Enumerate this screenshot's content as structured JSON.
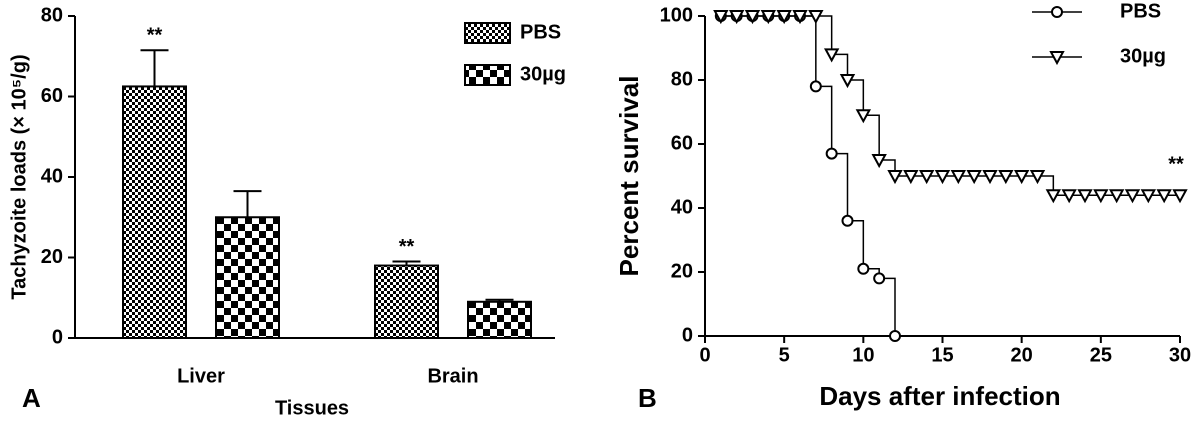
{
  "chart_data": [
    {
      "type": "bar",
      "panel_label": "A",
      "ylabel": "Tachyzoite loads (× 10⁵/g)",
      "xlabel": "Tissues",
      "categories": [
        "Liver",
        "Brain"
      ],
      "series": [
        {
          "name": "PBS",
          "color": "#000000",
          "pattern": "fine-checker",
          "values": [
            62.5,
            18
          ],
          "errors": [
            9,
            1
          ]
        },
        {
          "name": "30µg",
          "color": "#000000",
          "pattern": "coarse-checker",
          "values": [
            30,
            9
          ],
          "errors": [
            6.5,
            0.5
          ]
        }
      ],
      "annotations": [
        "**",
        "**"
      ],
      "ylim": [
        0,
        80
      ],
      "yticks": [
        0,
        20,
        40,
        60,
        80
      ],
      "legend": "upper right"
    },
    {
      "type": "line",
      "step": true,
      "panel_label": "B",
      "ylabel": "Percent survival",
      "xlabel": "Days after infection",
      "series": [
        {
          "name": "PBS",
          "color": "#000000",
          "marker": "circle",
          "x": [
            1,
            2,
            3,
            4,
            5,
            6,
            7,
            8,
            9,
            10,
            11,
            12
          ],
          "values": [
            100,
            100,
            100,
            100,
            100,
            100,
            78,
            57,
            36,
            21,
            18,
            0
          ]
        },
        {
          "name": "30µg",
          "color": "#000000",
          "marker": "triangle-down",
          "x": [
            1,
            2,
            3,
            4,
            5,
            6,
            7,
            8,
            9,
            10,
            11,
            12,
            13,
            14,
            15,
            16,
            17,
            18,
            19,
            20,
            21,
            22,
            23,
            24,
            25,
            26,
            27,
            28,
            29,
            30
          ],
          "values": [
            100,
            100,
            100,
            100,
            100,
            100,
            100,
            88,
            80,
            69,
            55,
            50,
            50,
            50,
            50,
            50,
            50,
            50,
            50,
            50,
            50,
            44,
            44,
            44,
            44,
            44,
            44,
            44,
            44,
            44
          ]
        }
      ],
      "annotation": "**",
      "xlim": [
        0,
        30
      ],
      "xticks": [
        0,
        5,
        10,
        15,
        20,
        25,
        30
      ],
      "ylim": [
        0,
        100
      ],
      "yticks": [
        0,
        20,
        40,
        60,
        80,
        100
      ],
      "legend": "upper right"
    }
  ]
}
